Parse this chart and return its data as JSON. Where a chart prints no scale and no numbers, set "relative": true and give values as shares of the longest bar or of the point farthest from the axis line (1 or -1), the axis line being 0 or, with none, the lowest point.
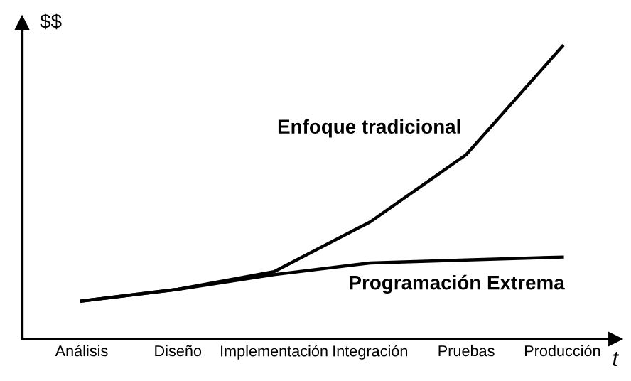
{
  "chart_data": {
    "type": "line",
    "relative": true,
    "ylabel": "$$",
    "xlabel": "t",
    "categories": [
      "Análisis",
      "Diseño",
      "Implementación",
      "Integración",
      "Pruebas",
      "Producción"
    ],
    "series": [
      {
        "name": "Enfoque tradicional",
        "color": "#000000",
        "values": [
          0.13,
          0.17,
          0.23,
          0.4,
          0.63,
          1
        ]
      },
      {
        "name": "Programación Extrema",
        "color": "#000000",
        "values": [
          0.13,
          0.17,
          0.22,
          0.26,
          0.27,
          0.28
        ]
      }
    ],
    "grid": false,
    "legend": false,
    "marker": "none",
    "line_style": "solid"
  }
}
